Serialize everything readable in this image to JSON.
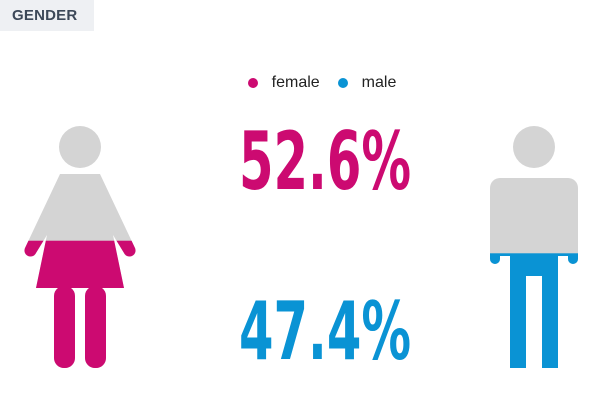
{
  "header": {
    "title": "GENDER"
  },
  "colors": {
    "female": "#cc0a71",
    "male": "#0a93d4",
    "figure_gray": "#d4d4d4"
  },
  "chart_data": {
    "type": "pictogram",
    "series": [
      {
        "name": "female",
        "value": 52.6,
        "label": "52.6%",
        "color": "#cc0a71"
      },
      {
        "name": "male",
        "value": 47.4,
        "label": "47.4%",
        "color": "#0a93d4"
      }
    ]
  }
}
